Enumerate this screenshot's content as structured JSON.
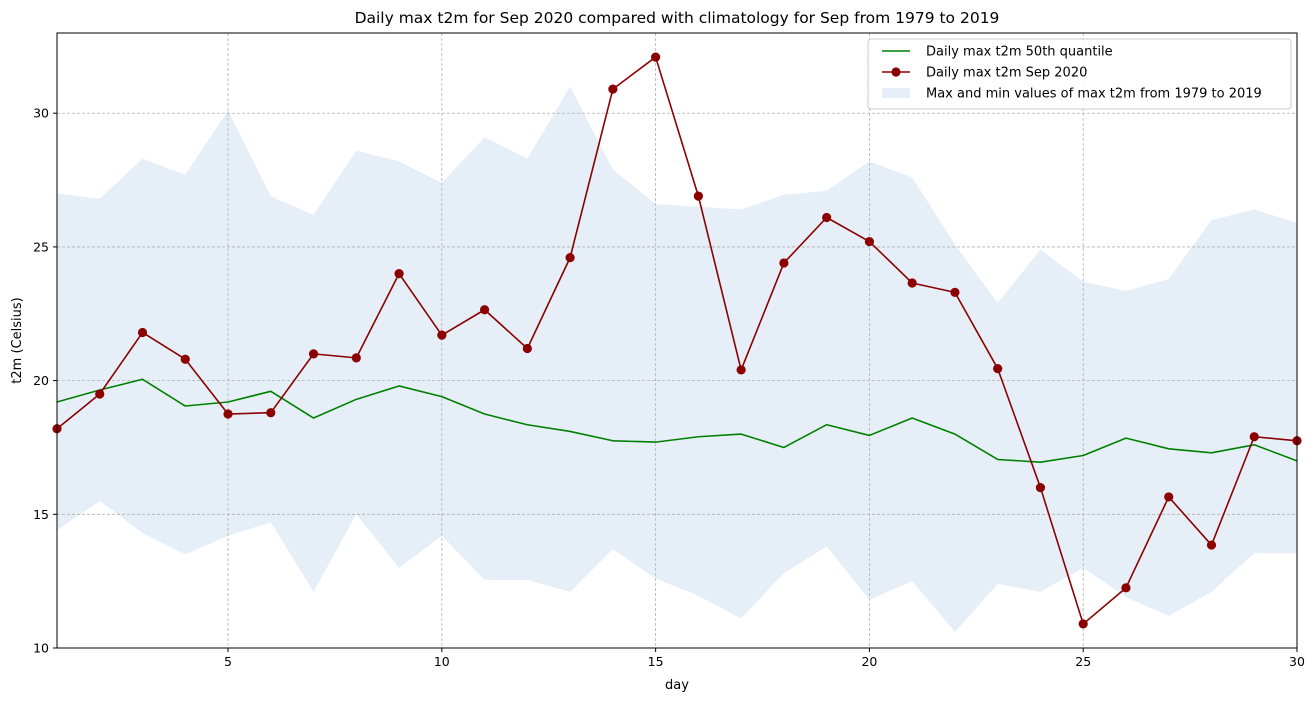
{
  "chart_data": {
    "type": "line",
    "title": "Daily max t2m for Sep 2020 compared with climatology for Sep from 1979 to 2019",
    "xlabel": "day",
    "ylabel": "t2m (Celsius)",
    "xlim": [
      1,
      30
    ],
    "ylim": [
      10,
      33
    ],
    "xticks": [
      5,
      10,
      15,
      20,
      25,
      30
    ],
    "yticks": [
      10,
      15,
      20,
      25,
      30
    ],
    "grid": true,
    "legend_position": "top-right",
    "x": [
      1,
      2,
      3,
      4,
      5,
      6,
      7,
      8,
      9,
      10,
      11,
      12,
      13,
      14,
      15,
      16,
      17,
      18,
      19,
      20,
      21,
      22,
      23,
      24,
      25,
      26,
      27,
      28,
      29,
      30
    ],
    "series": [
      {
        "name": "Daily max t2m 50th quantile",
        "color": "#008000",
        "marker": "none",
        "values": [
          19.2,
          19.65,
          20.05,
          19.05,
          19.2,
          19.6,
          18.6,
          19.3,
          19.8,
          19.4,
          18.75,
          18.35,
          18.1,
          17.75,
          17.7,
          17.9,
          18.0,
          17.5,
          18.35,
          17.95,
          18.6,
          18.0,
          17.05,
          16.95,
          17.2,
          17.85,
          17.45,
          17.3,
          17.6,
          17.0
        ]
      },
      {
        "name": "Daily max t2m Sep 2020",
        "color": "#8b0000",
        "marker": "circle",
        "values": [
          18.2,
          19.5,
          21.8,
          20.8,
          18.75,
          18.8,
          21.0,
          20.85,
          24.0,
          21.7,
          22.65,
          21.2,
          24.6,
          30.9,
          32.1,
          26.9,
          20.4,
          24.4,
          26.1,
          25.2,
          23.65,
          23.3,
          20.45,
          16.0,
          10.9,
          12.25,
          15.65,
          13.85,
          17.9,
          17.75
        ]
      }
    ],
    "band": {
      "name": "Max and min values of max t2m from 1979 to 2019",
      "color": "#e6eff7",
      "upper": [
        27.0,
        26.8,
        28.3,
        27.7,
        30.1,
        26.9,
        26.2,
        28.6,
        28.2,
        27.4,
        29.1,
        28.3,
        31.0,
        27.9,
        26.6,
        26.5,
        26.4,
        26.95,
        27.1,
        28.2,
        27.6,
        25.1,
        22.9,
        24.9,
        23.7,
        23.35,
        23.8,
        26.0,
        26.4,
        25.9
      ],
      "lower": [
        14.4,
        15.5,
        14.3,
        13.5,
        14.2,
        14.7,
        12.1,
        15.0,
        13.0,
        14.2,
        12.55,
        12.55,
        12.1,
        13.7,
        12.6,
        11.95,
        11.1,
        12.8,
        13.8,
        11.8,
        12.5,
        10.6,
        12.4,
        12.1,
        13.0,
        11.9,
        11.2,
        12.1,
        13.55,
        13.55
      ]
    }
  }
}
